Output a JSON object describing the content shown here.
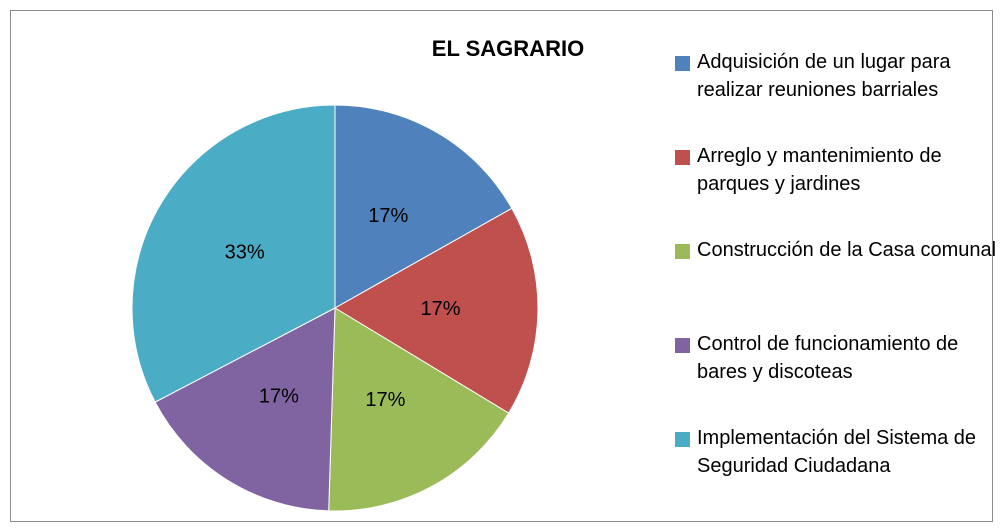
{
  "chart_data": {
    "type": "pie",
    "title": "EL SAGRARIO",
    "categories": [
      "Adquisición de un lugar para realizar reuniones barriales",
      "Arreglo y mantenimiento de parques y jardines",
      "Construcción de la Casa comunal",
      "Control de funcionamiento de bares y discoteas",
      "Implementación del Sistema de Seguridad Ciudadana"
    ],
    "values": [
      17,
      17,
      17,
      17,
      33
    ],
    "value_labels": [
      "17%",
      "17%",
      "17%",
      "17%",
      "33%"
    ],
    "colors": [
      "#4f81bd",
      "#c0504d",
      "#9bbb59",
      "#8064a2",
      "#4bacc6"
    ],
    "legend": "right"
  }
}
